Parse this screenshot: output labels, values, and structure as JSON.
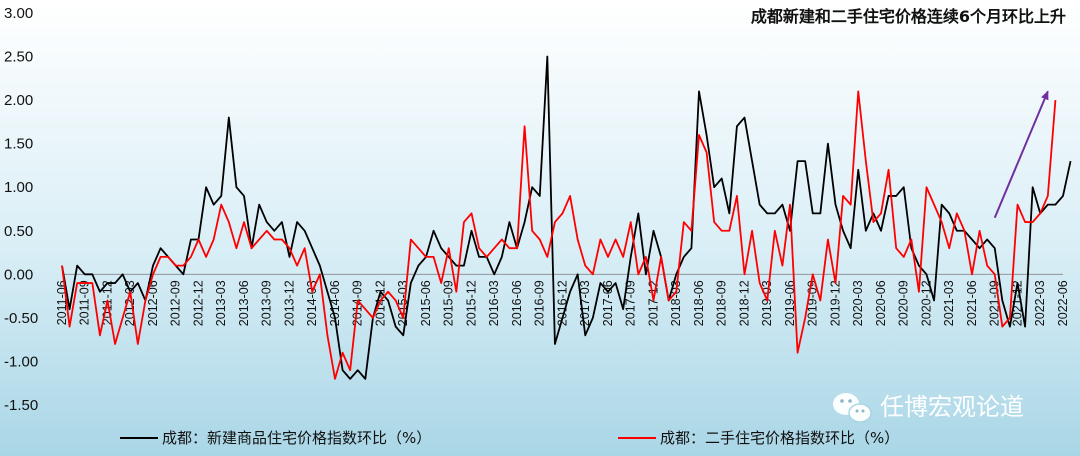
{
  "chart_data": {
    "type": "line",
    "title": "成都新建和二手住宅价格连续6个月环比上升",
    "xlabel": "",
    "ylabel": "",
    "ylim": [
      -1.5,
      3.0
    ],
    "yticks": [
      "3.00",
      "2.50",
      "2.00",
      "1.50",
      "1.00",
      "0.50",
      "0.00",
      "-0.50",
      "-1.00",
      "-1.50"
    ],
    "x_tick_labels": [
      "2011-06",
      "2011-09",
      "2011-12",
      "2012-03",
      "2012-06",
      "2012-09",
      "2012-12",
      "2013-03",
      "2013-06",
      "2013-09",
      "2013-12",
      "2014-03",
      "2014-06",
      "2014-09",
      "2014-12",
      "2015-03",
      "2015-06",
      "2015-09",
      "2015-12",
      "2016-03",
      "2016-06",
      "2016-09",
      "2016-12",
      "2017-03",
      "2017-06",
      "2017-09",
      "2017-12",
      "2018-03",
      "2018-06",
      "2018-09",
      "2018-12",
      "2019-03",
      "2019-06",
      "2019-09",
      "2019-12",
      "2020-03",
      "2020-06",
      "2020-09",
      "2020-12",
      "2021-03",
      "2021-06",
      "2021-09",
      "2021-12",
      "2022-03",
      "2022-06"
    ],
    "x_start": "2011-06",
    "x_end": "2022-06",
    "grid": false,
    "legend_position": "bottom",
    "series": [
      {
        "name": "成都：新建商品住宅价格指数环比（%）",
        "color": "#000000",
        "values": [
          0.1,
          -0.4,
          0.1,
          0,
          0,
          -0.2,
          -0.1,
          -0.1,
          0,
          -0.2,
          -0.1,
          -0.3,
          0.1,
          0.3,
          0.2,
          0.1,
          0,
          0.4,
          0.4,
          1,
          0.8,
          0.9,
          1.8,
          1,
          0.9,
          0.3,
          0.8,
          0.6,
          0.5,
          0.6,
          0.2,
          0.6,
          0.5,
          0.3,
          0.1,
          -0.2,
          -0.5,
          -1.1,
          -1.2,
          -1.1,
          -1.2,
          -0.5,
          -0.2,
          -0.3,
          -0.6,
          -0.7,
          -0.1,
          0.1,
          0.2,
          0.5,
          0.3,
          0.2,
          0.1,
          0.1,
          0.5,
          0.2,
          0.2,
          0,
          0.2,
          0.6,
          0.3,
          0.6,
          1,
          0.9,
          2.5,
          -0.8,
          -0.5,
          -0.2,
          0,
          -0.7,
          -0.5,
          -0.1,
          -0.2,
          -0.1,
          -0.4,
          0.2,
          0.7,
          0,
          0.5,
          0.2,
          -0.3,
          0,
          0.2,
          0.3,
          2.1,
          1.6,
          1,
          1.1,
          0.7,
          1.7,
          1.8,
          1.3,
          0.8,
          0.7,
          0.7,
          0.8,
          0.5,
          1.3,
          1.3,
          0.7,
          0.7,
          1.5,
          0.8,
          0.5,
          0.3,
          1.2,
          0.5,
          0.7,
          0.5,
          0.9,
          0.9,
          1,
          0.3,
          0.1,
          0,
          -0.3,
          0.8,
          0.7,
          0.5,
          0.5,
          0.4,
          0.3,
          0.4,
          0.3,
          -0.3,
          -0.6,
          -0.1,
          -0.6,
          1,
          0.7,
          0.8,
          0.8,
          0.9,
          1.3
        ]
      },
      {
        "name": "成都：二手住宅价格指数环比（%）",
        "color": "#ff0000",
        "values": [
          0.1,
          -0.6,
          -0.1,
          -0.1,
          -0.1,
          -0.7,
          -0.3,
          -0.8,
          -0.5,
          -0.2,
          -0.8,
          -0.3,
          0,
          0.2,
          0.2,
          0.1,
          0.1,
          0.2,
          0.4,
          0.2,
          0.4,
          0.8,
          0.6,
          0.3,
          0.6,
          0.3,
          0.4,
          0.5,
          0.4,
          0.4,
          0.3,
          0.1,
          0.3,
          -0.2,
          0,
          -0.7,
          -1.2,
          -0.9,
          -1.1,
          -0.3,
          -0.4,
          -0.5,
          -0.3,
          -0.2,
          -0.3,
          -0.5,
          0.4,
          0.3,
          0.2,
          0.2,
          -0.1,
          0.3,
          -0.2,
          0.6,
          0.7,
          0.3,
          0.2,
          0.3,
          0.4,
          0.3,
          0.3,
          1.7,
          0.5,
          0.4,
          0.2,
          0.6,
          0.7,
          0.9,
          0.4,
          0.1,
          0,
          0.4,
          0.2,
          0.4,
          0.2,
          0.6,
          0,
          0.2,
          -0.3,
          0.2,
          -0.3,
          -0.2,
          0.6,
          0.5,
          1.6,
          1.4,
          0.6,
          0.5,
          0.5,
          0.9,
          0,
          0.5,
          -0.1,
          -0.3,
          0.5,
          0.1,
          0.8,
          -0.9,
          -0.5,
          0,
          -0.3,
          0.4,
          -0.1,
          0.9,
          0.8,
          2.1,
          1.3,
          0.6,
          0.7,
          1.2,
          0.3,
          0.2,
          0.4,
          -0.2,
          1,
          0.8,
          0.6,
          0.3,
          0.7,
          0.5,
          0,
          0.5,
          0.1,
          0,
          -0.6,
          -0.5,
          0.8,
          0.6,
          0.6,
          0.7,
          0.9,
          2
        ]
      }
    ],
    "annotations": [
      {
        "type": "arrow",
        "color": "#7030a0",
        "from": {
          "x": "2021-09",
          "y": 0.65
        },
        "to": {
          "x": "2022-04",
          "y": 2.1
        }
      }
    ]
  },
  "watermark": {
    "icon": "wechat-icon",
    "text": "任博宏观论道"
  },
  "colors": {
    "background_top": "#ffffff",
    "background_bottom": "#a9d6e6",
    "arrow": "#7030a0"
  }
}
